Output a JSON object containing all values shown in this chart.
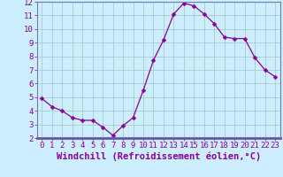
{
  "x": [
    0,
    1,
    2,
    3,
    4,
    5,
    6,
    7,
    8,
    9,
    10,
    11,
    12,
    13,
    14,
    15,
    16,
    17,
    18,
    19,
    20,
    21,
    22,
    23
  ],
  "y": [
    4.9,
    4.3,
    4.0,
    3.5,
    3.3,
    3.3,
    2.8,
    2.2,
    2.9,
    3.5,
    5.5,
    7.7,
    9.2,
    11.1,
    11.9,
    11.7,
    11.1,
    10.4,
    9.4,
    9.3,
    9.3,
    7.9,
    7.0,
    6.5
  ],
  "line_color": "#880099",
  "marker": "D",
  "marker_size": 2.5,
  "xlabel": "Windchill (Refroidissement éolien,°C)",
  "xlim": [
    -0.5,
    23.5
  ],
  "ylim": [
    2,
    12
  ],
  "yticks": [
    2,
    3,
    4,
    5,
    6,
    7,
    8,
    9,
    10,
    11,
    12
  ],
  "xticks": [
    0,
    1,
    2,
    3,
    4,
    5,
    6,
    7,
    8,
    9,
    10,
    11,
    12,
    13,
    14,
    15,
    16,
    17,
    18,
    19,
    20,
    21,
    22,
    23
  ],
  "bg_color": "#cceeff",
  "plot_bg": "#cceeff",
  "grid_color": "#aacccc",
  "tick_color": "#880099",
  "tick_fontsize": 6.5,
  "xlabel_fontsize": 7.5,
  "xlabel_color": "#880099",
  "spine_color": "#7777aa",
  "bottom_bar_color": "#6655aa"
}
